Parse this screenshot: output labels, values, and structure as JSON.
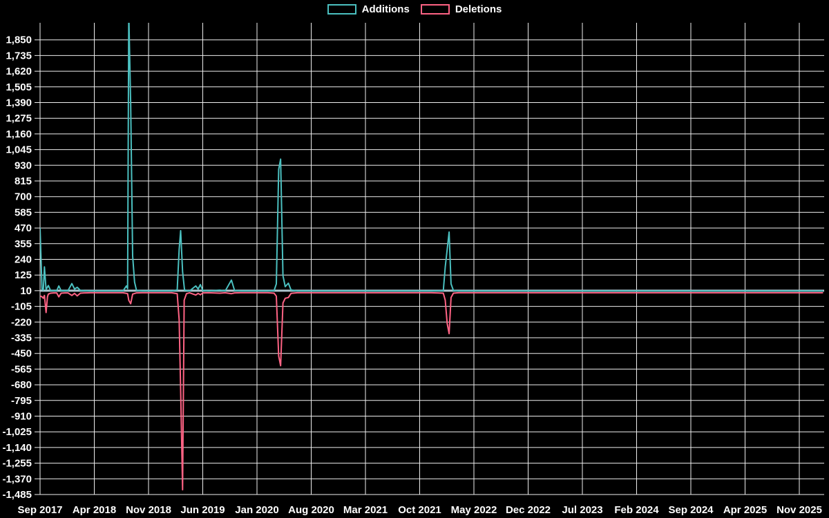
{
  "legend": {
    "items": [
      {
        "label": "Additions",
        "color": "#4bc0c0"
      },
      {
        "label": "Deletions",
        "color": "#ff6384"
      }
    ]
  },
  "colors": {
    "background": "#000000",
    "grid": "#efefef",
    "axis_text": "#ffffff",
    "baseline": "#aec6cf",
    "additions": "#4bc0c0",
    "deletions": "#ff6384"
  },
  "chart_data": {
    "type": "line",
    "title": "",
    "xlabel": "",
    "ylabel": "",
    "legend_position": "top",
    "grid": true,
    "x_unit": "months since Sep 2017 (weekly commit data points)",
    "x_ticks": [
      "Sep 2017",
      "Apr 2018",
      "Nov 2018",
      "Jun 2019",
      "Jan 2020",
      "Aug 2020",
      "Mar 2021",
      "Oct 2021",
      "May 2022",
      "Dec 2022",
      "Jul 2023",
      "Feb 2024",
      "Sep 2024",
      "Apr 2025",
      "Nov 2025"
    ],
    "x_tick_month_step": 7,
    "y_ticks": {
      "max": 1850,
      "min": -1485,
      "step": 115
    },
    "y_domain": [
      -1485,
      1975
    ],
    "baseline_value": 10,
    "series": [
      {
        "name": "Additions",
        "color": "#4bc0c0",
        "points": [
          [
            0,
            470
          ],
          [
            0.25,
            22
          ],
          [
            0.42,
            15
          ],
          [
            0.56,
            185
          ],
          [
            0.78,
            18
          ],
          [
            1.07,
            48
          ],
          [
            1.35,
            12
          ],
          [
            1.75,
            10
          ],
          [
            2.15,
            10
          ],
          [
            2.42,
            45
          ],
          [
            2.72,
            10
          ],
          [
            3.2,
            10
          ],
          [
            3.6,
            10
          ],
          [
            4.1,
            62
          ],
          [
            4.45,
            22
          ],
          [
            4.8,
            35
          ],
          [
            5.2,
            12
          ],
          [
            5.7,
            10
          ],
          [
            6.5,
            8
          ],
          [
            7.3,
            8
          ],
          [
            8.4,
            8
          ],
          [
            9.2,
            8
          ],
          [
            10.0,
            8
          ],
          [
            10.7,
            8
          ],
          [
            11.15,
            45
          ],
          [
            11.3,
            25
          ],
          [
            11.45,
            2050
          ],
          [
            11.7,
            1370
          ],
          [
            11.95,
            265
          ],
          [
            12.2,
            73
          ],
          [
            12.45,
            12
          ],
          [
            13.2,
            8
          ],
          [
            14.5,
            8
          ],
          [
            15.8,
            8
          ],
          [
            17.0,
            8
          ],
          [
            17.7,
            15
          ],
          [
            17.95,
            310
          ],
          [
            18.15,
            450
          ],
          [
            18.4,
            150
          ],
          [
            18.65,
            15
          ],
          [
            19.3,
            8
          ],
          [
            20.1,
            45
          ],
          [
            20.4,
            22
          ],
          [
            20.7,
            55
          ],
          [
            21.0,
            12
          ],
          [
            21.8,
            8
          ],
          [
            23.2,
            14
          ],
          [
            23.9,
            8
          ],
          [
            24.7,
            88
          ],
          [
            25.1,
            12
          ],
          [
            25.9,
            8
          ],
          [
            27.0,
            8
          ],
          [
            28.2,
            8
          ],
          [
            29.4,
            8
          ],
          [
            30.2,
            10
          ],
          [
            30.5,
            60
          ],
          [
            30.8,
            900
          ],
          [
            31.05,
            975
          ],
          [
            31.35,
            120
          ],
          [
            31.65,
            40
          ],
          [
            32.05,
            65
          ],
          [
            32.4,
            15
          ],
          [
            33.2,
            8
          ],
          [
            34.8,
            8
          ],
          [
            36.5,
            8
          ],
          [
            38.5,
            8
          ],
          [
            40.5,
            8
          ],
          [
            42.5,
            8
          ],
          [
            44.5,
            8
          ],
          [
            46.5,
            8
          ],
          [
            48.5,
            8
          ],
          [
            50.5,
            8
          ],
          [
            52.05,
            10
          ],
          [
            52.3,
            185
          ],
          [
            52.8,
            440
          ],
          [
            53.05,
            60
          ],
          [
            53.35,
            12
          ],
          [
            54.0,
            8
          ],
          [
            56,
            8
          ],
          [
            58,
            8
          ],
          [
            61,
            8
          ],
          [
            64,
            8
          ],
          [
            67,
            8
          ],
          [
            70,
            8
          ],
          [
            73,
            8
          ],
          [
            76,
            8
          ],
          [
            79,
            8
          ],
          [
            82,
            8
          ],
          [
            85,
            8
          ],
          [
            88,
            8
          ],
          [
            91,
            8
          ],
          [
            94,
            8
          ],
          [
            97,
            8
          ],
          [
            99,
            8
          ],
          [
            101,
            8
          ]
        ]
      },
      {
        "name": "Deletions",
        "color": "#ff6384",
        "points": [
          [
            0,
            -28
          ],
          [
            0.25,
            -35
          ],
          [
            0.42,
            -45
          ],
          [
            0.56,
            -25
          ],
          [
            0.78,
            -150
          ],
          [
            0.95,
            -35
          ],
          [
            1.07,
            -15
          ],
          [
            1.35,
            -8
          ],
          [
            1.75,
            -6
          ],
          [
            2.15,
            -6
          ],
          [
            2.42,
            -35
          ],
          [
            2.72,
            -8
          ],
          [
            3.2,
            -6
          ],
          [
            3.6,
            -6
          ],
          [
            4.1,
            -25
          ],
          [
            4.45,
            -10
          ],
          [
            4.8,
            -28
          ],
          [
            5.2,
            -8
          ],
          [
            5.7,
            -6
          ],
          [
            6.5,
            -5
          ],
          [
            7.3,
            -5
          ],
          [
            8.4,
            -5
          ],
          [
            9.2,
            -5
          ],
          [
            10.0,
            -5
          ],
          [
            10.7,
            -5
          ],
          [
            11.15,
            -10
          ],
          [
            11.3,
            -12
          ],
          [
            11.45,
            -60
          ],
          [
            11.7,
            -85
          ],
          [
            11.95,
            -15
          ],
          [
            12.45,
            -6
          ],
          [
            13.2,
            -5
          ],
          [
            14.5,
            -5
          ],
          [
            15.8,
            -5
          ],
          [
            17.0,
            -5
          ],
          [
            17.7,
            -12
          ],
          [
            17.95,
            -200
          ],
          [
            18.15,
            -720
          ],
          [
            18.4,
            -1450
          ],
          [
            18.6,
            -60
          ],
          [
            18.9,
            -12
          ],
          [
            19.3,
            -5
          ],
          [
            20.1,
            -22
          ],
          [
            20.4,
            -10
          ],
          [
            20.7,
            -20
          ],
          [
            21.0,
            -6
          ],
          [
            21.8,
            -5
          ],
          [
            23.2,
            -8
          ],
          [
            23.9,
            -5
          ],
          [
            24.7,
            -12
          ],
          [
            25.1,
            -6
          ],
          [
            25.9,
            -5
          ],
          [
            27.0,
            -5
          ],
          [
            28.2,
            -5
          ],
          [
            29.4,
            -5
          ],
          [
            30.2,
            -8
          ],
          [
            30.5,
            -30
          ],
          [
            30.8,
            -470
          ],
          [
            31.05,
            -540
          ],
          [
            31.35,
            -80
          ],
          [
            31.65,
            -45
          ],
          [
            32.05,
            -40
          ],
          [
            32.4,
            -10
          ],
          [
            33.2,
            -5
          ],
          [
            34.8,
            -5
          ],
          [
            36.5,
            -5
          ],
          [
            38.5,
            -5
          ],
          [
            40.5,
            -5
          ],
          [
            42.5,
            -5
          ],
          [
            44.5,
            -5
          ],
          [
            46.5,
            -5
          ],
          [
            48.5,
            -5
          ],
          [
            50.5,
            -5
          ],
          [
            52.05,
            -8
          ],
          [
            52.3,
            -60
          ],
          [
            52.55,
            -230
          ],
          [
            52.8,
            -305
          ],
          [
            53.05,
            -40
          ],
          [
            53.35,
            -8
          ],
          [
            54.0,
            -5
          ],
          [
            56,
            -5
          ],
          [
            58,
            -5
          ],
          [
            61,
            -5
          ],
          [
            64,
            -5
          ],
          [
            67,
            -5
          ],
          [
            70,
            -5
          ],
          [
            73,
            -5
          ],
          [
            76,
            -5
          ],
          [
            79,
            -5
          ],
          [
            82,
            -5
          ],
          [
            85,
            -5
          ],
          [
            88,
            -5
          ],
          [
            91,
            -5
          ],
          [
            94,
            -5
          ],
          [
            97,
            -5
          ],
          [
            99,
            -5
          ],
          [
            101,
            -5
          ]
        ]
      }
    ]
  }
}
